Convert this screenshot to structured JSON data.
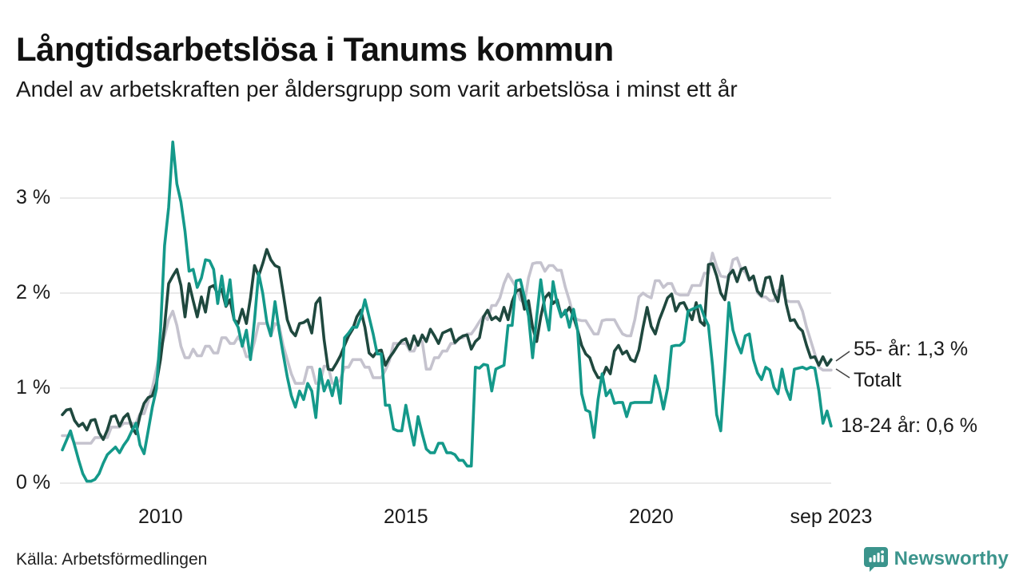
{
  "header": {
    "title": "Långtidsarbetslösa i Tanums kommun",
    "subtitle": "Andel av arbetskraften per åldersgrupp som varit arbetslösa i minst ett år"
  },
  "footer": {
    "source": "Källa: Arbetsförmedlingen",
    "brand": "Newsworthy"
  },
  "colors": {
    "teal_series": "#14998a",
    "dark_green_series": "#1f483e",
    "gray_series": "#c5c3ce",
    "gridline": "#e3e3e3",
    "brand_teal": "#3b948c",
    "connector": "#444444"
  },
  "chart_data": {
    "type": "line",
    "title": "Långtidsarbetslösa i Tanums kommun",
    "subtitle": "Andel av arbetskraften per åldersgrupp som varit arbetslösa i minst ett år",
    "unit": "% av arbetskraften",
    "x_start_year": 2008,
    "points_per_year": 12,
    "ylim": [
      0,
      3.8
    ],
    "grid": true,
    "legend_position": "end-of-line-labels",
    "yticks": [
      {
        "value": 0,
        "label": "0 %"
      },
      {
        "value": 1,
        "label": "1 %"
      },
      {
        "value": 2,
        "label": "2 %"
      },
      {
        "value": 3,
        "label": "3 %"
      }
    ],
    "xticks": [
      {
        "t": 2010,
        "label": "2010"
      },
      {
        "t": 2015,
        "label": "2015"
      },
      {
        "t": 2020,
        "label": "2020"
      },
      {
        "t": 2023.667,
        "label": "sep 2023"
      }
    ],
    "annotations": [
      {
        "text": "55- år: 1,3 %"
      },
      {
        "text": "Totalt"
      },
      {
        "text": "18-24 år: 0,6 %"
      }
    ],
    "series": [
      {
        "id": "totalt",
        "name": "Totalt",
        "color": "#c5c3ce",
        "last_value": 1.19,
        "values": [
          0.5,
          0.5,
          0.5,
          0.42,
          0.42,
          0.42,
          0.42,
          0.42,
          0.48,
          0.48,
          0.48,
          0.48,
          0.59,
          0.59,
          0.59,
          0.63,
          0.63,
          0.63,
          0.63,
          0.73,
          0.73,
          0.86,
          1.0,
          1.2,
          1.4,
          1.55,
          1.72,
          1.81,
          1.66,
          1.44,
          1.32,
          1.32,
          1.41,
          1.34,
          1.34,
          1.44,
          1.44,
          1.37,
          1.37,
          1.53,
          1.53,
          1.47,
          1.47,
          1.54,
          1.47,
          1.33,
          1.33,
          1.49,
          1.68,
          1.68,
          1.68,
          1.55,
          1.68,
          1.66,
          1.45,
          1.3,
          1.15,
          1.05,
          1.05,
          1.05,
          1.22,
          1.22,
          1.05,
          1.05,
          1.23,
          1.23,
          1.05,
          1.05,
          1.09,
          1.22,
          1.22,
          1.3,
          1.3,
          1.3,
          1.22,
          1.22,
          1.11,
          1.11,
          1.11,
          1.19,
          1.29,
          1.47,
          1.47,
          1.47,
          1.47,
          1.39,
          1.39,
          1.49,
          1.49,
          1.2,
          1.2,
          1.32,
          1.32,
          1.39,
          1.39,
          1.47,
          1.47,
          1.53,
          1.53,
          1.57,
          1.57,
          1.63,
          1.7,
          1.76,
          1.72,
          1.87,
          1.87,
          1.95,
          2.1,
          2.2,
          2.13,
          2.06,
          1.93,
          1.89,
          2.16,
          2.31,
          2.32,
          2.32,
          2.23,
          2.29,
          2.29,
          2.24,
          2.24,
          2.06,
          1.92,
          1.75,
          1.72,
          1.71,
          1.71,
          1.64,
          1.57,
          1.57,
          1.71,
          1.72,
          1.72,
          1.72,
          1.64,
          1.57,
          1.55,
          1.55,
          1.72,
          1.96,
          2.0,
          1.97,
          1.95,
          2.13,
          2.13,
          2.06,
          2.1,
          2.1,
          2.0,
          1.98,
          1.98,
          1.98,
          2.08,
          2.08,
          2.08,
          2.21,
          2.21,
          2.42,
          2.28,
          2.18,
          2.17,
          2.17,
          2.35,
          2.37,
          2.25,
          2.22,
          2.13,
          2.17,
          2.0,
          1.96,
          1.96,
          1.92,
          1.92,
          2.03,
          2.03,
          1.92,
          1.91,
          1.91,
          1.91,
          1.81,
          1.64,
          1.5,
          1.36,
          1.22,
          1.19,
          1.19,
          1.19
        ]
      },
      {
        "id": "55plus",
        "name": "55- år",
        "color": "#1f483e",
        "last_value": 1.3,
        "values": [
          0.72,
          0.77,
          0.78,
          0.66,
          0.6,
          0.63,
          0.56,
          0.66,
          0.67,
          0.53,
          0.46,
          0.56,
          0.7,
          0.71,
          0.6,
          0.69,
          0.73,
          0.59,
          0.52,
          0.71,
          0.84,
          0.9,
          0.92,
          1.05,
          1.3,
          1.65,
          2.1,
          2.18,
          2.25,
          2.08,
          1.75,
          2.1,
          1.92,
          1.75,
          1.96,
          1.8,
          2.06,
          2.08,
          1.99,
          2.04,
          1.86,
          1.93,
          1.72,
          1.68,
          1.83,
          1.68,
          1.95,
          2.29,
          2.18,
          2.31,
          2.46,
          2.35,
          2.29,
          2.27,
          2.0,
          1.72,
          1.6,
          1.55,
          1.68,
          1.69,
          1.72,
          1.58,
          1.89,
          1.95,
          1.51,
          1.2,
          1.19,
          1.26,
          1.34,
          1.45,
          1.55,
          1.62,
          1.75,
          1.82,
          1.64,
          1.37,
          1.33,
          1.39,
          1.4,
          1.24,
          1.32,
          1.38,
          1.45,
          1.5,
          1.52,
          1.41,
          1.55,
          1.45,
          1.56,
          1.49,
          1.62,
          1.55,
          1.47,
          1.58,
          1.6,
          1.62,
          1.48,
          1.52,
          1.55,
          1.56,
          1.41,
          1.49,
          1.53,
          1.75,
          1.82,
          1.72,
          1.75,
          1.71,
          1.85,
          1.72,
          1.91,
          2.02,
          2.04,
          1.83,
          1.92,
          1.64,
          1.49,
          1.75,
          1.95,
          2.0,
          1.89,
          1.93,
          1.76,
          1.79,
          1.85,
          1.75,
          1.61,
          1.45,
          1.36,
          1.32,
          1.19,
          1.11,
          1.11,
          1.22,
          1.15,
          1.39,
          1.45,
          1.36,
          1.39,
          1.3,
          1.28,
          1.4,
          1.64,
          1.85,
          1.65,
          1.57,
          1.72,
          1.83,
          1.95,
          1.99,
          1.81,
          1.89,
          1.9,
          1.81,
          1.72,
          1.9,
          1.7,
          1.66,
          2.3,
          2.31,
          2.18,
          2.0,
          1.93,
          2.19,
          2.24,
          2.12,
          2.25,
          2.27,
          2.14,
          2.18,
          2.02,
          1.97,
          2.16,
          2.17,
          2.0,
          1.91,
          2.18,
          1.89,
          1.71,
          1.72,
          1.64,
          1.6,
          1.45,
          1.32,
          1.33,
          1.24,
          1.33,
          1.24,
          1.3
        ]
      },
      {
        "id": "18-24",
        "name": "18-24 år",
        "color": "#14998a",
        "last_value": 0.6,
        "values": [
          0.35,
          0.45,
          0.55,
          0.4,
          0.24,
          0.1,
          0.02,
          0.02,
          0.04,
          0.1,
          0.21,
          0.3,
          0.34,
          0.38,
          0.32,
          0.4,
          0.46,
          0.55,
          0.63,
          0.4,
          0.31,
          0.55,
          0.8,
          0.99,
          1.6,
          2.5,
          2.9,
          3.59,
          3.15,
          2.96,
          2.65,
          2.23,
          2.25,
          2.06,
          2.16,
          2.35,
          2.34,
          2.25,
          1.89,
          2.18,
          1.87,
          2.14,
          1.72,
          1.64,
          1.44,
          1.61,
          1.3,
          1.72,
          2.21,
          2.0,
          1.7,
          1.55,
          1.91,
          1.61,
          1.36,
          1.12,
          0.92,
          0.8,
          0.97,
          0.88,
          1.05,
          0.97,
          0.69,
          1.2,
          0.97,
          1.08,
          0.92,
          1.11,
          0.84,
          1.53,
          1.58,
          1.64,
          1.64,
          1.75,
          1.93,
          1.75,
          1.57,
          1.36,
          1.36,
          0.82,
          0.82,
          0.57,
          0.55,
          0.55,
          0.82,
          0.6,
          0.4,
          0.7,
          0.52,
          0.36,
          0.32,
          0.32,
          0.42,
          0.42,
          0.32,
          0.32,
          0.3,
          0.24,
          0.24,
          0.18,
          0.18,
          1.22,
          1.21,
          1.25,
          1.24,
          0.97,
          1.2,
          1.22,
          1.24,
          1.66,
          1.66,
          2.13,
          2.14,
          1.96,
          1.76,
          1.32,
          1.75,
          2.14,
          1.82,
          1.61,
          2.12,
          1.89,
          1.75,
          1.82,
          1.64,
          1.83,
          1.61,
          0.94,
          0.77,
          0.75,
          0.48,
          0.88,
          1.15,
          0.92,
          0.98,
          0.84,
          0.85,
          0.85,
          0.7,
          0.84,
          0.85,
          0.85,
          0.85,
          0.85,
          0.85,
          1.13,
          0.99,
          0.78,
          1.0,
          1.44,
          1.45,
          1.45,
          1.49,
          1.81,
          1.83,
          1.85,
          1.87,
          1.75,
          1.66,
          1.24,
          0.72,
          0.55,
          1.2,
          1.9,
          1.61,
          1.47,
          1.37,
          1.55,
          1.57,
          1.3,
          1.16,
          1.09,
          1.22,
          1.19,
          1.01,
          0.94,
          1.2,
          0.99,
          0.88,
          1.2,
          1.21,
          1.22,
          1.2,
          1.22,
          1.21,
          0.97,
          0.63,
          0.76,
          0.6
        ]
      }
    ]
  }
}
